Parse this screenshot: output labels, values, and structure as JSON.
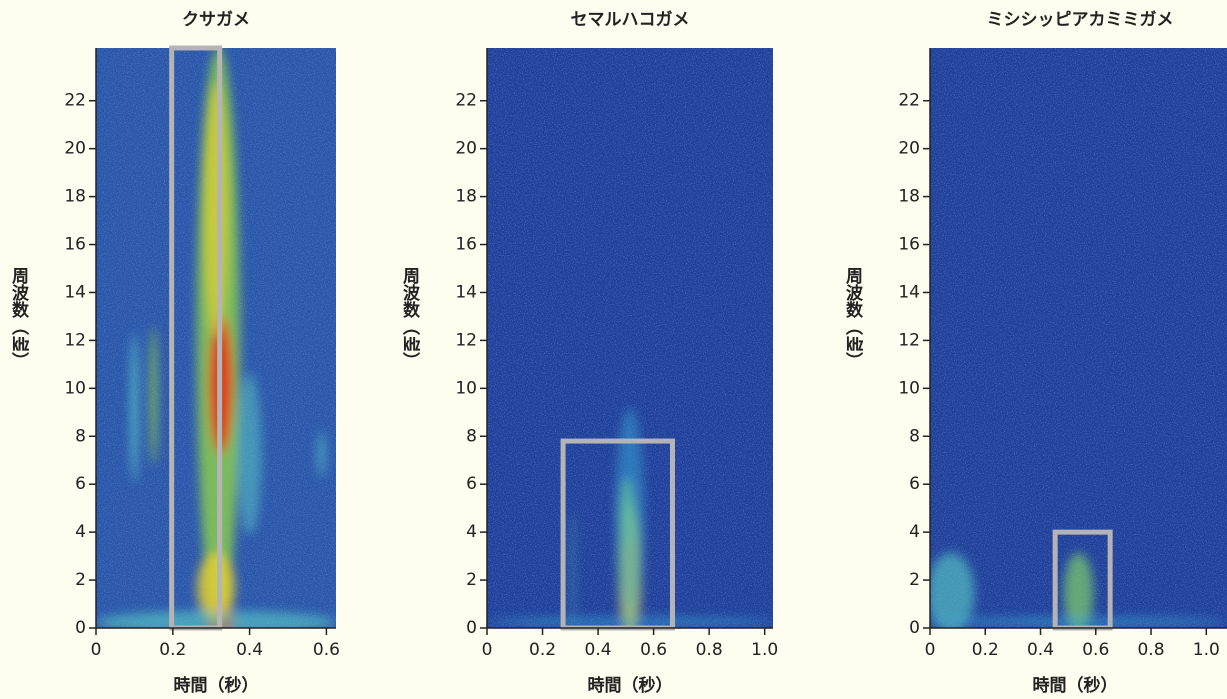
{
  "chart_data": [
    {
      "type": "spectrogram",
      "title": "クサガメ",
      "xlabel": "時間（秒）",
      "ylabel": "周波数（㎑）",
      "xlim": [
        0,
        0.625
      ],
      "ylim": [
        0,
        24.2
      ],
      "xticks": [
        0,
        0.2,
        0.4,
        0.6
      ],
      "yticks": [
        0,
        2,
        4,
        6,
        8,
        10,
        12,
        14,
        16,
        18,
        20,
        22
      ],
      "highlight": {
        "x": [
          0.197,
          0.322
        ],
        "y": [
          0,
          24.2
        ]
      },
      "highlight_color": "#b4b4b4"
    },
    {
      "type": "spectrogram",
      "title": "セマルハコガメ",
      "xlabel": "時間（秒）",
      "ylabel": "周波数（㎑）",
      "xlim": [
        0,
        1.03
      ],
      "ylim": [
        0,
        24.2
      ],
      "xticks": [
        0,
        0.2,
        0.4,
        0.6,
        0.8,
        {
          "value": 1,
          "label": "1.0"
        }
      ],
      "yticks": [
        0,
        2,
        4,
        6,
        8,
        10,
        12,
        14,
        16,
        18,
        20,
        22
      ],
      "highlight": {
        "x": [
          0.274,
          0.668
        ],
        "y": [
          0,
          7.8
        ]
      },
      "highlight_color": "#b4b4b4"
    },
    {
      "type": "spectrogram",
      "title": "ミシシッピアカミミガメ",
      "xlabel": "時間（秒）",
      "ylabel": "周波数（㎑）",
      "xlim": [
        0,
        1.075
      ],
      "ylim": [
        0,
        24.2
      ],
      "xticks": [
        0,
        0.2,
        0.4,
        0.6,
        0.8,
        {
          "value": 1,
          "label": "1.0"
        }
      ],
      "yticks": [
        0,
        2,
        4,
        6,
        8,
        10,
        12,
        14,
        16,
        18,
        20,
        22
      ],
      "highlight": {
        "x": [
          0.453,
          0.652
        ],
        "y": [
          0,
          4.0
        ]
      },
      "highlight_color": "#b4b4b4"
    }
  ]
}
